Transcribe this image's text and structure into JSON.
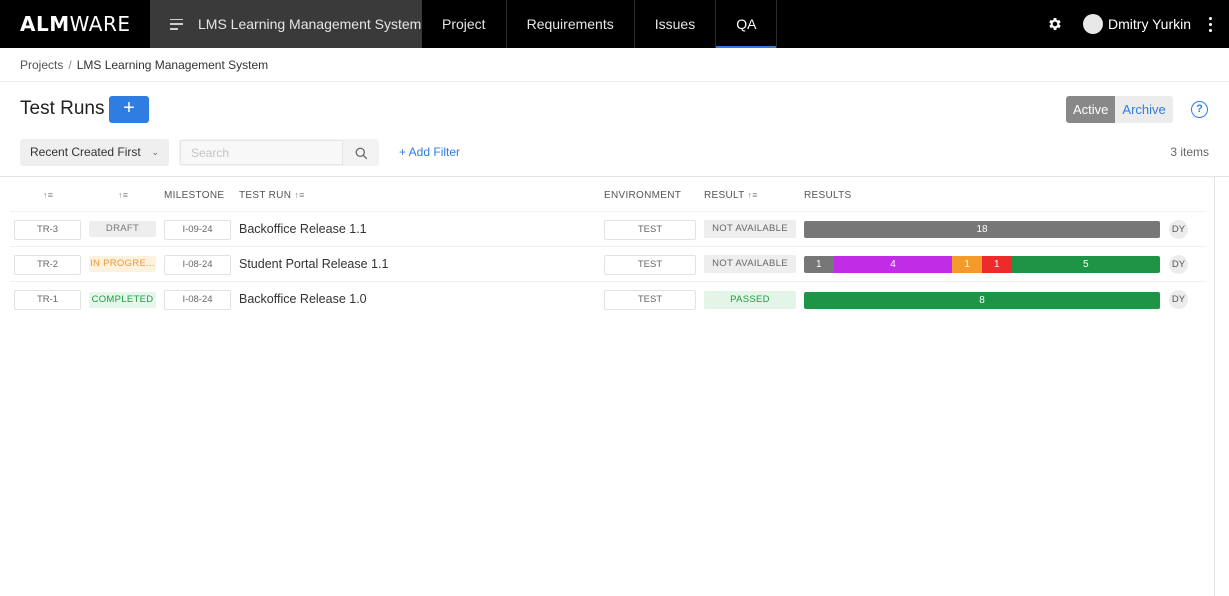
{
  "nav": {
    "logo_bold": "ALM",
    "logo_rest": "WARE",
    "project": "LMS Learning Management System",
    "tabs": [
      "Project",
      "Requirements",
      "Issues",
      "QA"
    ],
    "active_tab": "QA",
    "user_name": "Dmitry Yurkin"
  },
  "breadcrumb": {
    "root": "Projects",
    "separator": "/",
    "current": "LMS Learning Management System"
  },
  "page": {
    "title": "Test Runs",
    "add_label": "+",
    "toggle_active": "Active",
    "toggle_archive": "Archive",
    "help": "?"
  },
  "filters": {
    "sort_label": "Recent Created First",
    "search_placeholder": "Search",
    "add_filter_label": "+ Add Filter",
    "item_count": "3 items"
  },
  "table": {
    "headers": {
      "milestone": "MILESTONE",
      "test_run": "TEST RUN",
      "environment": "ENVIRONMENT",
      "result": "RESULT",
      "results": "RESULTS"
    },
    "rows": [
      {
        "id": "TR-3",
        "status": "DRAFT",
        "milestone": "I-09-24",
        "name": "Backoffice Release 1.1",
        "environment": "TEST",
        "result": "NOT AVAILABLE",
        "segments": [
          {
            "label": "18",
            "value": 18,
            "color": "#777777"
          }
        ],
        "assignee": "DY"
      },
      {
        "id": "TR-2",
        "status": "IN PROGRE...",
        "milestone": "I-08-24",
        "name": "Student Portal Release 1.1",
        "environment": "TEST",
        "result": "NOT AVAILABLE",
        "segments": [
          {
            "label": "1",
            "value": 1,
            "color": "#777777"
          },
          {
            "label": "4",
            "value": 4,
            "color": "#c12ce6"
          },
          {
            "label": "1",
            "value": 1,
            "color": "#f39a2a"
          },
          {
            "label": "1",
            "value": 1,
            "color": "#ee2b2b"
          },
          {
            "label": "5",
            "value": 5,
            "color": "#1e9447"
          }
        ],
        "assignee": "DY"
      },
      {
        "id": "TR-1",
        "status": "COMPLETED",
        "milestone": "I-08-24",
        "name": "Backoffice Release 1.0",
        "environment": "TEST",
        "result": "PASSED",
        "segments": [
          {
            "label": "8",
            "value": 8,
            "color": "#1e9447"
          }
        ],
        "assignee": "DY"
      }
    ]
  }
}
